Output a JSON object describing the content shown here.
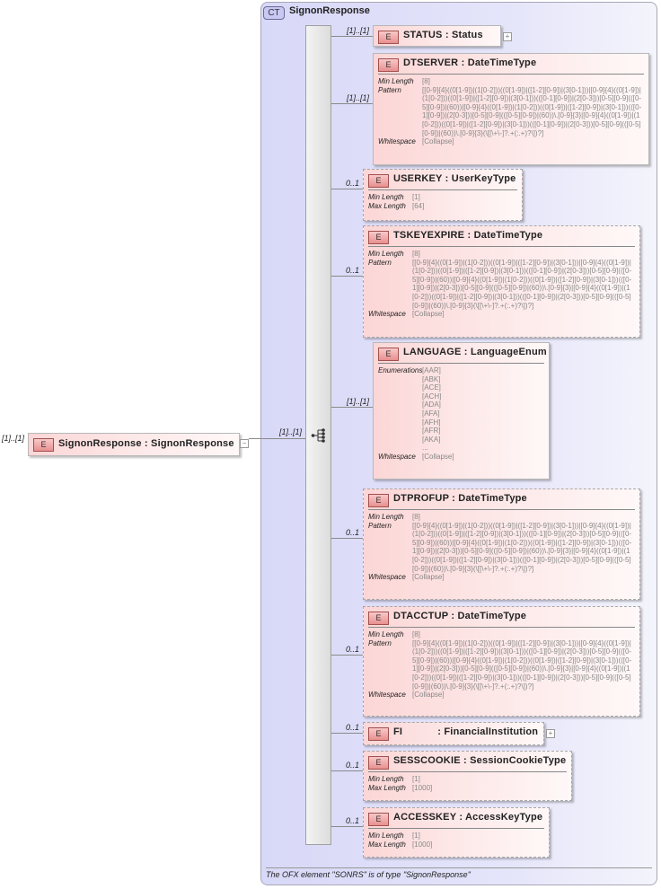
{
  "root": {
    "cardinality": "[1]..[1]",
    "badge": "E",
    "name": "SignonResponse",
    "type": "SignonResponse",
    "collapse_icon": "minus-icon"
  },
  "complex_type": {
    "badge": "CT",
    "name": "SignonResponse",
    "sequence_cardinality": "[1]..[1]",
    "sequence_icon": "sequence-icon"
  },
  "children": [
    {
      "cardinality": "[1]..[1]",
      "badge": "E",
      "name": "STATUS",
      "type": "Status",
      "optional": false,
      "expand": true,
      "facets": []
    },
    {
      "cardinality": "[1]..[1]",
      "badge": "E",
      "name": "DTSERVER",
      "type": "DateTimeType",
      "optional": false,
      "facets": [
        {
          "label": "Min Length",
          "value": "[8]"
        },
        {
          "label": "Pattern",
          "value": "[[0-9]{4}((0[1-9])|(1[0-2]))((0[1-9])|([1-2][0-9])|(3[0-1]))|[0-9]{4}((0[1-9])|(1[0-2]))((0[1-9])|([1-2][0-9])|(3[0-1]))(([0-1][0-9])|(2[0-3]))[0-5][0-9](([0-5][0-9])|(60))|[0-9]{4}((0[1-9])|(1[0-2]))((0[1-9])|([1-2][0-9])|(3[0-1]))(([0-1][0-9])|(2[0-3]))[0-5][0-9](([0-5][0-9])|(60))\\.[0-9]{3}|[0-9]{4}((0[1-9])|(1[0-2]))((0[1-9])|([1-2][0-9])|(3[0-1]))(([0-1][0-9])|(2[0-3]))[0-5][0-9](([0-5][0-9])|(60))\\.[0-9]{3}(\\[[\\+\\-]?.+(:.+)?\\])?]"
        },
        {
          "label": "Whitespace",
          "value": "[Collapse]"
        }
      ]
    },
    {
      "cardinality": "0..1",
      "badge": "E",
      "name": "USERKEY",
      "type": "UserKeyType",
      "optional": true,
      "facets": [
        {
          "label": "Min Length",
          "value": "[1]"
        },
        {
          "label": "Max Length",
          "value": "[64]"
        }
      ]
    },
    {
      "cardinality": "0..1",
      "badge": "E",
      "name": "TSKEYEXPIRE",
      "type": "DateTimeType",
      "optional": true,
      "facets": [
        {
          "label": "Min Length",
          "value": "[8]"
        },
        {
          "label": "Pattern",
          "value": "[[0-9]{4}((0[1-9])|(1[0-2]))((0[1-9])|([1-2][0-9])|(3[0-1]))|[0-9]{4}((0[1-9])|(1[0-2]))((0[1-9])|([1-2][0-9])|(3[0-1]))(([0-1][0-9])|(2[0-3]))[0-5][0-9](([0-5][0-9])|(60))|[0-9]{4}((0[1-9])|(1[0-2]))((0[1-9])|([1-2][0-9])|(3[0-1]))(([0-1][0-9])|(2[0-3]))[0-5][0-9](([0-5][0-9])|(60))\\.[0-9]{3}|[0-9]{4}((0[1-9])|(1[0-2]))((0[1-9])|([1-2][0-9])|(3[0-1]))(([0-1][0-9])|(2[0-3]))[0-5][0-9](([0-5][0-9])|(60))\\.[0-9]{3}(\\[[\\+\\-]?.+(:.+)?\\])?]"
        },
        {
          "label": "Whitespace",
          "value": "[Collapse]"
        }
      ]
    },
    {
      "cardinality": "[1]..[1]",
      "badge": "E",
      "name": "LANGUAGE",
      "type": "LanguageEnum",
      "optional": false,
      "facets": [
        {
          "label": "Enumerations",
          "values": [
            "[AAR]",
            "[ABK]",
            "[ACE]",
            "[ACH]",
            "[ADA]",
            "[AFA]",
            "[AFH]",
            "[AFR]",
            "[AKA]",
            "..."
          ]
        },
        {
          "label": "Whitespace",
          "value": "[Collapse]"
        }
      ]
    },
    {
      "cardinality": "0..1",
      "badge": "E",
      "name": "DTPROFUP",
      "type": "DateTimeType",
      "optional": true,
      "facets": [
        {
          "label": "Min Length",
          "value": "[8]"
        },
        {
          "label": "Pattern",
          "value": "[[0-9]{4}((0[1-9])|(1[0-2]))((0[1-9])|([1-2][0-9])|(3[0-1]))|[0-9]{4}((0[1-9])|(1[0-2]))((0[1-9])|([1-2][0-9])|(3[0-1]))(([0-1][0-9])|(2[0-3]))[0-5][0-9](([0-5][0-9])|(60))|[0-9]{4}((0[1-9])|(1[0-2]))((0[1-9])|([1-2][0-9])|(3[0-1]))(([0-1][0-9])|(2[0-3]))[0-5][0-9](([0-5][0-9])|(60))\\.[0-9]{3}|[0-9]{4}((0[1-9])|(1[0-2]))((0[1-9])|([1-2][0-9])|(3[0-1]))(([0-1][0-9])|(2[0-3]))[0-5][0-9](([0-5][0-9])|(60))\\.[0-9]{3}(\\[[\\+\\-]?.+(:.+)?\\])?]"
        },
        {
          "label": "Whitespace",
          "value": "[Collapse]"
        }
      ]
    },
    {
      "cardinality": "0..1",
      "badge": "E",
      "name": "DTACCTUP",
      "type": "DateTimeType",
      "optional": true,
      "facets": [
        {
          "label": "Min Length",
          "value": "[8]"
        },
        {
          "label": "Pattern",
          "value": "[[0-9]{4}((0[1-9])|(1[0-2]))((0[1-9])|([1-2][0-9])|(3[0-1]))|[0-9]{4}((0[1-9])|(1[0-2]))((0[1-9])|([1-2][0-9])|(3[0-1]))(([0-1][0-9])|(2[0-3]))[0-5][0-9](([0-5][0-9])|(60))|[0-9]{4}((0[1-9])|(1[0-2]))((0[1-9])|([1-2][0-9])|(3[0-1]))(([0-1][0-9])|(2[0-3]))[0-5][0-9](([0-5][0-9])|(60))\\.[0-9]{3}|[0-9]{4}((0[1-9])|(1[0-2]))((0[1-9])|([1-2][0-9])|(3[0-1]))(([0-1][0-9])|(2[0-3]))[0-5][0-9](([0-5][0-9])|(60))\\.[0-9]{3}(\\[[\\+\\-]?.+(:.+)?\\])?]"
        },
        {
          "label": "Whitespace",
          "value": "[Collapse]"
        }
      ]
    },
    {
      "cardinality": "0..1",
      "badge": "E",
      "name": "FI",
      "type": "FinancialInstitution",
      "optional": true,
      "expand": true,
      "facets": []
    },
    {
      "cardinality": "0..1",
      "badge": "E",
      "name": "SESSCOOKIE",
      "type": "SessionCookieType",
      "optional": true,
      "facets": [
        {
          "label": "Min Length",
          "value": "[1]"
        },
        {
          "label": "Max Length",
          "value": "[1000]"
        }
      ]
    },
    {
      "cardinality": "0..1",
      "badge": "E",
      "name": "ACCESSKEY",
      "type": "AccessKeyType",
      "optional": true,
      "facets": [
        {
          "label": "Min Length",
          "value": "[1]"
        },
        {
          "label": "Max Length",
          "value": "[1000]"
        }
      ]
    }
  ],
  "footer": "The OFX element \"SONRS\" is of type \"SignonResponse\""
}
